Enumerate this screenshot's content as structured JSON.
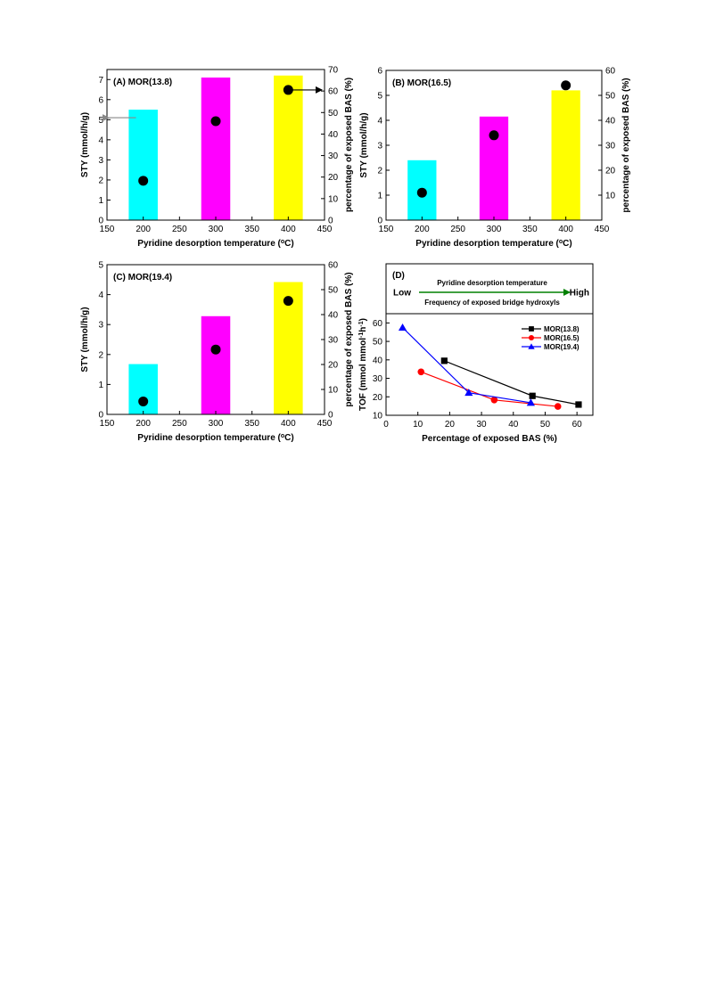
{
  "chart_data": [
    {
      "panel": "A",
      "type": "bar",
      "title": "(A) MOR(13.8)",
      "xlabel": "Pyridine desorption temperature (°C)",
      "ylabel": "STY (mmol/h/g)",
      "y2label": "percentage of exposed BAS (%)",
      "xlim": [
        150,
        450
      ],
      "ylim": [
        0,
        7.5
      ],
      "y2lim": [
        0,
        70
      ],
      "xticks": [
        150,
        200,
        250,
        300,
        350,
        400,
        450
      ],
      "yticks": [
        0,
        1,
        2,
        3,
        4,
        5,
        6,
        7
      ],
      "y2ticks": [
        0,
        10,
        20,
        30,
        40,
        50,
        60,
        70
      ],
      "categories": [
        200,
        300,
        400
      ],
      "bars": {
        "name": "STY",
        "values": [
          5.5,
          7.1,
          7.2
        ],
        "colors": [
          "#00ffff",
          "#ff00ff",
          "#ffff00"
        ]
      },
      "points": {
        "name": "percentage of exposed BAS",
        "values": [
          18.3,
          46.0,
          60.5
        ]
      },
      "arrows": [
        {
          "direction": "left",
          "y_axis": "left",
          "value": 5.1
        },
        {
          "direction": "right",
          "y_axis": "right",
          "value": 60.5
        }
      ]
    },
    {
      "panel": "B",
      "type": "bar",
      "title": "(B) MOR(16.5)",
      "xlabel": "Pyridine desorption temperature (°C)",
      "ylabel": "STY (mmol/h/g)",
      "y2label": "percentage of exposed BAS (%)",
      "xlim": [
        150,
        450
      ],
      "ylim": [
        0,
        6
      ],
      "y2lim": [
        0,
        60
      ],
      "xticks": [
        150,
        200,
        250,
        300,
        350,
        400,
        450
      ],
      "yticks": [
        0,
        1,
        2,
        3,
        4,
        5,
        6
      ],
      "y2ticks": [
        10,
        20,
        30,
        40,
        50,
        60
      ],
      "categories": [
        200,
        300,
        400
      ],
      "bars": {
        "name": "STY",
        "values": [
          2.4,
          4.15,
          5.2
        ],
        "colors": [
          "#00ffff",
          "#ff00ff",
          "#ffff00"
        ]
      },
      "points": {
        "name": "percentage of exposed BAS",
        "values": [
          11.0,
          34.0,
          54.0
        ]
      }
    },
    {
      "panel": "C",
      "type": "bar",
      "title": "(C) MOR(19.4)",
      "xlabel": "Pyridine desorption temperature (°C)",
      "ylabel": "STY (mmol/h/g)",
      "y2label": "percentage of exposed BAS (%)",
      "xlim": [
        150,
        450
      ],
      "ylim": [
        0,
        5
      ],
      "y2lim": [
        0,
        60
      ],
      "xticks": [
        150,
        200,
        250,
        300,
        350,
        400,
        450
      ],
      "yticks": [
        0,
        1,
        2,
        3,
        4,
        5
      ],
      "y2ticks": [
        0,
        10,
        20,
        30,
        40,
        50,
        60
      ],
      "categories": [
        200,
        300,
        400
      ],
      "bars": {
        "name": "STY",
        "values": [
          1.68,
          3.28,
          4.42
        ],
        "colors": [
          "#00ffff",
          "#ff00ff",
          "#ffff00"
        ]
      },
      "points": {
        "name": "percentage of exposed BAS",
        "values": [
          5.2,
          26.0,
          45.5
        ]
      }
    },
    {
      "panel": "D",
      "type": "line",
      "title": "(D)",
      "xlabel": "Percentage of exposed BAS (%)",
      "ylabel": "TOF (mmol mmol⁻¹h⁻¹)",
      "xlim": [
        0,
        65
      ],
      "ylim": [
        10,
        65
      ],
      "xticks": [
        0,
        10,
        20,
        30,
        40,
        50,
        60
      ],
      "yticks": [
        10,
        20,
        30,
        40,
        50,
        60
      ],
      "legend": "top-right",
      "top_annotation": {
        "low": "Low",
        "high": "High",
        "above": "Pyridine desorption temperature",
        "below": "Frequency of exposed bridge hydroxyls"
      },
      "series": [
        {
          "name": "MOR(13.8)",
          "marker": "square",
          "color": "#000000",
          "x": [
            18.3,
            46.0,
            60.5
          ],
          "y": [
            39.5,
            20.5,
            15.8
          ]
        },
        {
          "name": "MOR(16.5)",
          "marker": "circle",
          "color": "#ff0000",
          "x": [
            11.0,
            34.0,
            54.0
          ],
          "y": [
            33.5,
            18.3,
            14.8
          ]
        },
        {
          "name": "MOR(19.4)",
          "marker": "triangle",
          "color": "#0000ff",
          "x": [
            5.2,
            26.0,
            45.5
          ],
          "y": [
            57.5,
            22.2,
            16.8
          ]
        }
      ]
    }
  ]
}
